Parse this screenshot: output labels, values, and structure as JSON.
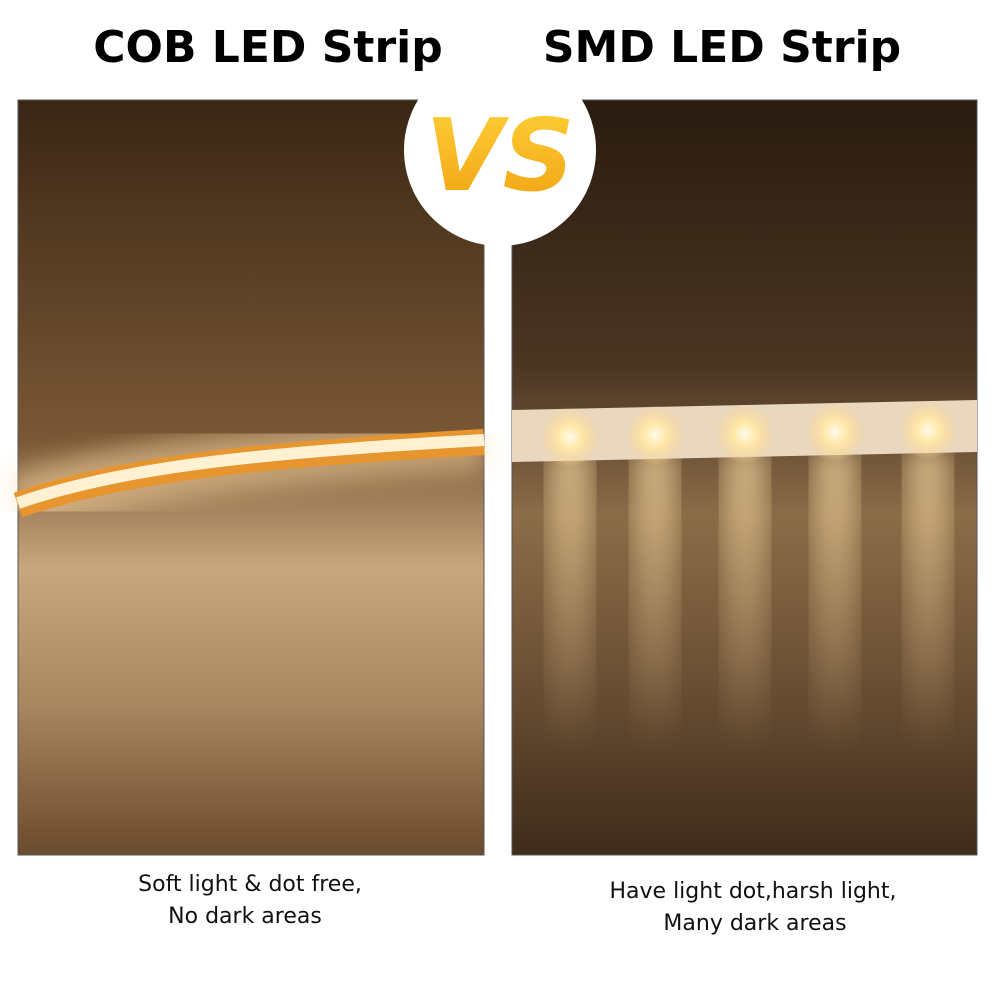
{
  "left": {
    "title": "COB LED Strip",
    "caption": [
      "Soft light & dot free,",
      "No dark areas"
    ]
  },
  "right": {
    "title": "SMD LED Strip",
    "caption": [
      "Have light dot,harsh light,",
      "Many dark areas"
    ]
  },
  "badge": "VS"
}
